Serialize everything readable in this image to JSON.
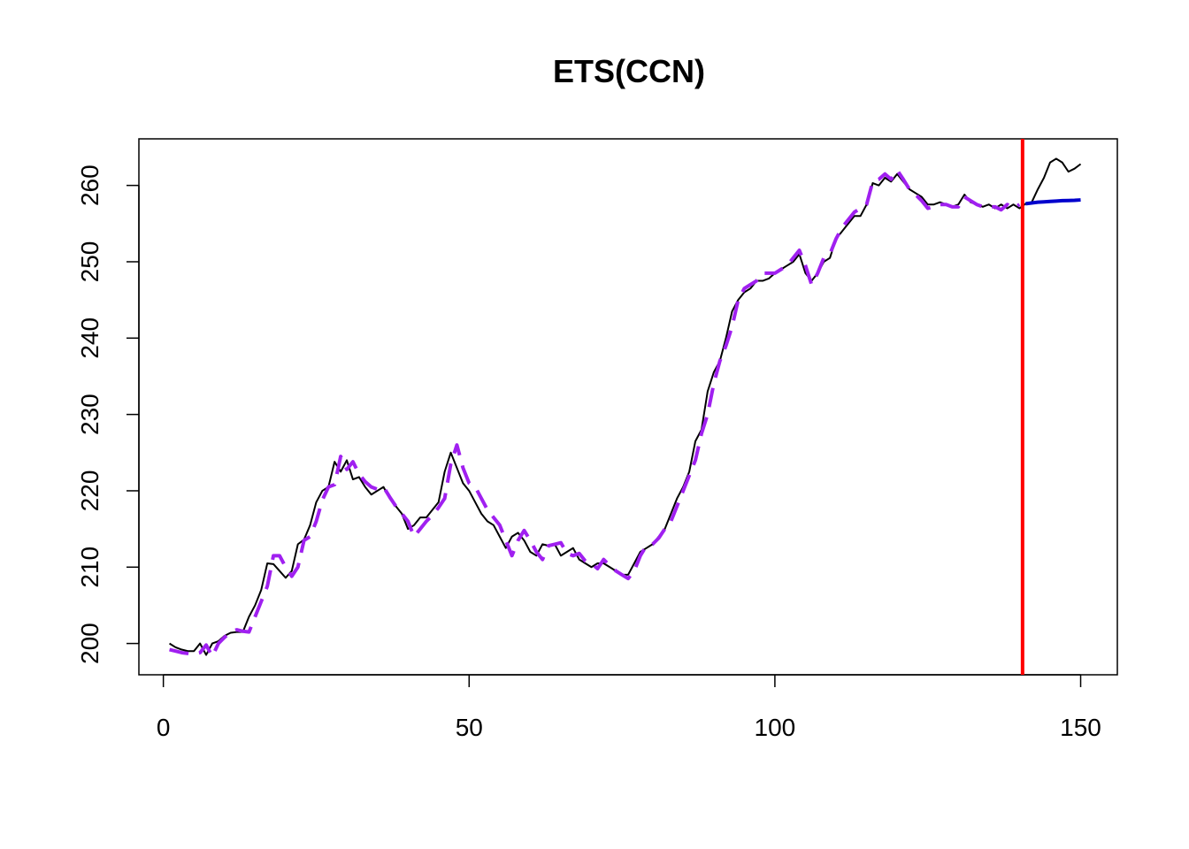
{
  "chart_data": {
    "type": "line",
    "title": "ETS(CCN)",
    "xlabel": "",
    "ylabel": "",
    "xlim": [
      -4,
      156
    ],
    "ylim": [
      195.9,
      266.1
    ],
    "x_ticks": [
      0,
      50,
      100,
      150
    ],
    "y_ticks": [
      200,
      210,
      220,
      230,
      240,
      250,
      260
    ],
    "grid": false,
    "legend": "none",
    "forecast_origin": 140.5,
    "series": [
      {
        "role": "actual",
        "color": "#000000",
        "style": "solid",
        "x_start": 1,
        "values": [
          200.0,
          199.5,
          199.2,
          199.0,
          199.0,
          200.0,
          198.5,
          200.0,
          200.3,
          201.0,
          201.4,
          201.5,
          201.5,
          203.5,
          205.0,
          207.0,
          210.5,
          210.4,
          209.5,
          208.6,
          209.5,
          213.0,
          213.6,
          215.5,
          218.5,
          220.0,
          220.5,
          223.8,
          222.5,
          224.0,
          221.5,
          221.8,
          220.5,
          219.5,
          220.0,
          220.5,
          219.0,
          218.0,
          217.0,
          215.0,
          215.5,
          216.5,
          216.5,
          217.5,
          218.5,
          222.5,
          225.0,
          223.0,
          221.0,
          220.0,
          218.5,
          217.0,
          216.0,
          215.5,
          214.0,
          212.5,
          214.0,
          214.5,
          213.5,
          212.0,
          211.5,
          213.0,
          212.8,
          213.0,
          211.5,
          212.0,
          212.5,
          211.0,
          210.5,
          210.0,
          210.5,
          210.5,
          210.0,
          209.5,
          209.0,
          209.0,
          210.5,
          212.0,
          212.5,
          213.0,
          214.0,
          215.0,
          217.0,
          219.0,
          220.5,
          222.5,
          226.5,
          228.0,
          233.0,
          235.5,
          237.0,
          240.0,
          243.5,
          245.0,
          246.0,
          246.5,
          247.5,
          247.5,
          247.8,
          248.5,
          249.0,
          249.5,
          250.0,
          251.0,
          248.5,
          247.5,
          248.5,
          250.0,
          250.5,
          253.0,
          254.0,
          255.0,
          256.0,
          256.0,
          257.5,
          260.3,
          260.0,
          261.0,
          260.5,
          261.5,
          260.5,
          259.5,
          259.0,
          258.5,
          257.5,
          257.5,
          257.8,
          257.5,
          257.2,
          257.5,
          258.8,
          257.8,
          257.5,
          257.2,
          257.5,
          257.0,
          257.5,
          257.0,
          257.5,
          257.0,
          257.6,
          257.8,
          259.5,
          261.0,
          263.0,
          263.5,
          263.0,
          261.8,
          262.2,
          262.8
        ]
      },
      {
        "role": "fitted",
        "color": "#a020f0",
        "style": "dashed",
        "x_start": 1,
        "values": [
          199.2,
          199.0,
          198.8,
          198.7,
          198.6,
          198.8,
          199.8,
          198.3,
          200.0,
          200.8,
          201.5,
          201.8,
          201.6,
          201.5,
          203.5,
          205.5,
          207.5,
          211.5,
          211.5,
          210.0,
          208.8,
          210.0,
          213.5,
          214.0,
          216.0,
          218.8,
          220.5,
          220.8,
          224.5,
          222.8,
          223.8,
          222.2,
          221.2,
          220.5,
          220.2,
          220.5,
          219.2,
          218.0,
          217.0,
          216.0,
          214.0,
          215.0,
          216.0,
          216.8,
          217.8,
          219.0,
          223.5,
          226.0,
          223.0,
          221.0,
          220.5,
          219.0,
          217.5,
          216.5,
          215.5,
          213.5,
          211.5,
          213.5,
          214.8,
          213.5,
          212.0,
          211.0,
          212.8,
          213.0,
          213.2,
          211.8,
          211.5,
          211.8,
          210.8,
          210.5,
          209.8,
          211.0,
          210.2,
          209.5,
          209.0,
          208.5,
          209.5,
          211.5,
          212.8,
          213.0,
          213.8,
          215.0,
          216.0,
          218.0,
          220.0,
          222.0,
          224.0,
          227.5,
          230.0,
          234.0,
          237.0,
          239.0,
          241.5,
          245.0,
          246.5,
          247.0,
          247.5,
          248.5,
          248.5,
          248.5,
          249.0,
          249.5,
          250.5,
          251.5,
          249.5,
          247.0,
          248.5,
          250.5,
          251.0,
          253.0,
          254.5,
          255.5,
          256.5,
          257.0,
          257.5,
          260.5,
          260.8,
          261.5,
          260.8,
          262.0,
          260.8,
          259.5,
          258.8,
          258.0,
          257.0,
          257.2,
          257.5,
          257.5,
          257.2,
          257.2,
          258.5,
          258.0,
          257.5,
          257.2,
          257.2,
          257.2,
          256.8,
          257.5,
          257.0,
          257.5
        ]
      },
      {
        "role": "forecast",
        "color": "#0000cd",
        "style": "solid",
        "x_start": 141,
        "values": [
          257.6,
          257.7,
          257.8,
          257.85,
          257.9,
          257.95,
          258.0,
          258.02,
          258.05,
          258.1
        ]
      }
    ]
  },
  "colors": {
    "vline": "#ff0000",
    "axis": "#000000"
  }
}
